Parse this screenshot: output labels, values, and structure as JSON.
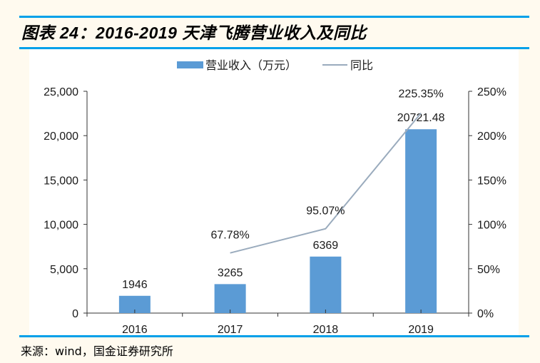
{
  "title": "图表 24：2016-2019 天津飞腾营业收入及同比",
  "source": "来源：wind，国金证券研究所",
  "colors": {
    "bar": "#5b9bd5",
    "line": "#9aabbd",
    "rule": "#00a0e9"
  },
  "chart_data": {
    "type": "bar+line",
    "categories": [
      "2016",
      "2017",
      "2018",
      "2019"
    ],
    "series": [
      {
        "name": "营业收入（万元）",
        "type": "bar",
        "axis": "left",
        "values": [
          1946,
          3265,
          6369,
          20721.48
        ],
        "labels": [
          "1946",
          "3265",
          "6369",
          "20721.48"
        ]
      },
      {
        "name": "同比",
        "type": "line",
        "axis": "right",
        "values": [
          null,
          67.78,
          95.07,
          225.35
        ],
        "labels": [
          "",
          "67.78%",
          "95.07%",
          "225.35%"
        ]
      }
    ],
    "left_axis": {
      "range": [
        0,
        25000
      ],
      "ticks": [
        0,
        5000,
        10000,
        15000,
        20000,
        25000
      ],
      "tick_labels": [
        "0",
        "5,000",
        "10,000",
        "15,000",
        "20,000",
        "25,000"
      ]
    },
    "right_axis": {
      "range": [
        0,
        250
      ],
      "ticks": [
        0,
        50,
        100,
        150,
        200,
        250
      ],
      "tick_labels": [
        "0%",
        "50%",
        "100%",
        "150%",
        "200%",
        "250%"
      ]
    },
    "legend": "top-center",
    "grid": false
  }
}
